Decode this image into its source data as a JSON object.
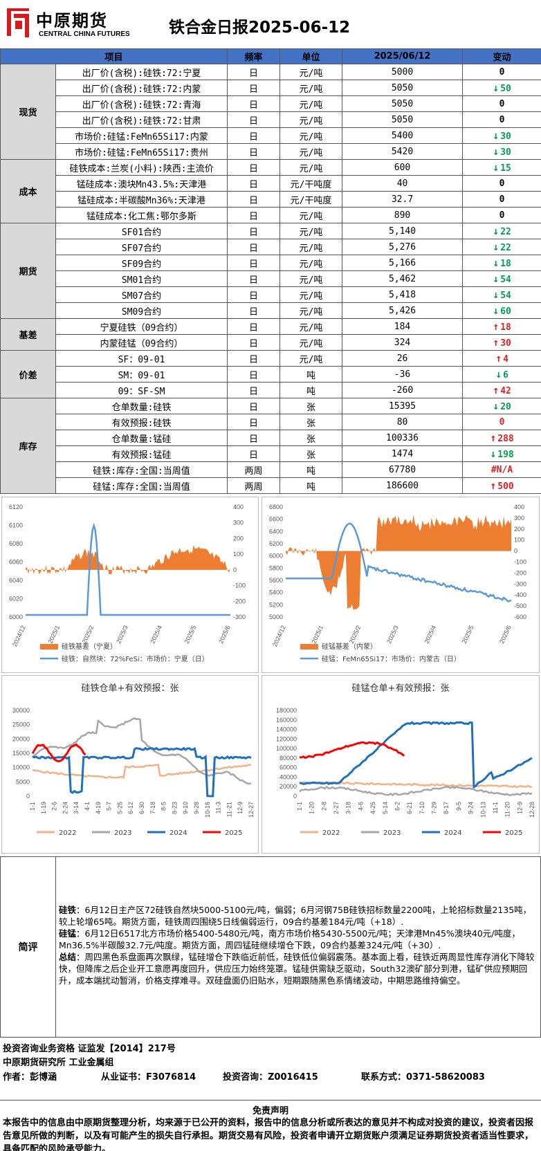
{
  "header": {
    "logo_name": "中原期货",
    "logo_en": "CENTRAL CHINA FUTURES",
    "title": "铁合金日报2025-06-12"
  },
  "table": {
    "columns": [
      "项目",
      "频率",
      "单位",
      "2025/06/12",
      "变动"
    ],
    "groups": [
      {
        "category": "现货",
        "rows": [
          {
            "item": "出厂价(含税):硅铁:72:宁夏",
            "freq": "日",
            "unit": "元/吨",
            "value": "5000",
            "change": "0",
            "dir": ""
          },
          {
            "item": "出厂价(含税):硅铁:72:内蒙",
            "freq": "日",
            "unit": "元/吨",
            "value": "5050",
            "change": "50",
            "dir": "down"
          },
          {
            "item": "出厂价(含税):硅铁:72:青海",
            "freq": "日",
            "unit": "元/吨",
            "value": "5050",
            "change": "0",
            "dir": ""
          },
          {
            "item": "出厂价(含税):硅铁:72:甘肃",
            "freq": "日",
            "unit": "元/吨",
            "value": "5050",
            "change": "0",
            "dir": ""
          },
          {
            "item": "市场价:硅锰:FeMn65Si17:内蒙",
            "freq": "日",
            "unit": "元/吨",
            "value": "5400",
            "change": "30",
            "dir": "down"
          },
          {
            "item": "市场价:硅锰:FeMn65Si17:贵州",
            "freq": "日",
            "unit": "元/吨",
            "value": "5420",
            "change": "30",
            "dir": "down"
          }
        ]
      },
      {
        "category": "成本",
        "rows": [
          {
            "item": "硅铁成本:兰炭(小料):陕西:主流价",
            "freq": "日",
            "unit": "元/吨",
            "value": "600",
            "change": "15",
            "dir": "down"
          },
          {
            "item": "锰硅成本:澳块Mn43.5%:天津港",
            "freq": "日",
            "unit": "元/干吨度",
            "value": "40",
            "change": "0",
            "dir": ""
          },
          {
            "item": "锰硅成本:半碳酸Mn36%:天津港",
            "freq": "日",
            "unit": "元/干吨度",
            "value": "32.7",
            "change": "0",
            "dir": ""
          },
          {
            "item": "锰硅成本:化工焦:鄂尔多斯",
            "freq": "日",
            "unit": "元/吨",
            "value": "890",
            "change": "0",
            "dir": ""
          }
        ]
      },
      {
        "category": "期货",
        "rows": [
          {
            "item": "SF01合约",
            "freq": "日",
            "unit": "元/吨",
            "value": "5,140",
            "change": "22",
            "dir": "down"
          },
          {
            "item": "SF07合约",
            "freq": "日",
            "unit": "元/吨",
            "value": "5,276",
            "change": "22",
            "dir": "down"
          },
          {
            "item": "SF09合约",
            "freq": "日",
            "unit": "元/吨",
            "value": "5,166",
            "change": "18",
            "dir": "down"
          },
          {
            "item": "SM01合约",
            "freq": "日",
            "unit": "元/吨",
            "value": "5,462",
            "change": "54",
            "dir": "down"
          },
          {
            "item": "SM07合约",
            "freq": "日",
            "unit": "元/吨",
            "value": "5,418",
            "change": "54",
            "dir": "down"
          },
          {
            "item": "SM09合约",
            "freq": "日",
            "unit": "元/吨",
            "value": "5,426",
            "change": "60",
            "dir": "down"
          }
        ]
      },
      {
        "category": "基差",
        "rows": [
          {
            "item": "宁夏硅铁（09合约）",
            "freq": "日",
            "unit": "元/吨",
            "value": "184",
            "change": "18",
            "dir": "up"
          },
          {
            "item": "内蒙硅锰（09合约）",
            "freq": "日",
            "unit": "元/吨",
            "value": "324",
            "change": "30",
            "dir": "up"
          }
        ]
      },
      {
        "category": "价差",
        "rows": [
          {
            "item": "SF：09-01",
            "freq": "日",
            "unit": "元/吨",
            "value": "26",
            "change": "4",
            "dir": "up"
          },
          {
            "item": "SM：09-01",
            "freq": "日",
            "unit": "吨",
            "value": "-36",
            "change": "6",
            "dir": "down"
          },
          {
            "item": "09：SF-SM",
            "freq": "日",
            "unit": "吨",
            "value": "-260",
            "change": "42",
            "dir": "up"
          }
        ]
      },
      {
        "category": "库存",
        "rows": [
          {
            "item": "仓单数量:硅铁",
            "freq": "日",
            "unit": "张",
            "value": "15395",
            "change": "20",
            "dir": "down"
          },
          {
            "item": "有效预报:硅铁",
            "freq": "日",
            "unit": "张",
            "value": "80",
            "change": "0",
            "dir": "red"
          },
          {
            "item": "仓单数量:锰硅",
            "freq": "日",
            "unit": "张",
            "value": "100336",
            "change": "288",
            "dir": "up"
          },
          {
            "item": "有效预报:锰硅",
            "freq": "日",
            "unit": "张",
            "value": "1474",
            "change": "198",
            "dir": "down"
          },
          {
            "item": "硅铁:库存:全国:当周值",
            "freq": "两周",
            "unit": "吨",
            "value": "67780",
            "change": "#N/A",
            "dir": "red"
          },
          {
            "item": "硅锰:库存:全国:当周值",
            "freq": "两周",
            "unit": "吨",
            "value": "186600",
            "change": "500",
            "dir": "up"
          }
        ]
      }
    ]
  },
  "chart_data": [
    {
      "type": "line",
      "title": "",
      "left_ticks": [
        "6120",
        "6100",
        "6080",
        "6060",
        "6040",
        "6020",
        "6000"
      ],
      "right_ticks": [
        "400",
        "300",
        "200",
        "100",
        "0",
        "-100",
        "-200",
        "-300"
      ],
      "x_ticks": [
        "2024/12",
        "2025/1",
        "2025/2",
        "2025/3",
        "2025/4",
        "2025/5",
        "2025/6"
      ],
      "series": [
        {
          "name": "硅铁：自然块：72%FeSi：市场价：宁夏（日）",
          "axis": "left",
          "color": "#5b9bd5"
        },
        {
          "name": "硅铁基差（宁夏）",
          "axis": "right",
          "color": "#ed7d31"
        }
      ],
      "legend": [
        "硅铁基差（宁夏）",
        "硅铁：自然块：72%FeSi：市场价：宁夏（日）"
      ]
    },
    {
      "type": "line",
      "title": "",
      "left_ticks": [
        "6800",
        "6600",
        "6400",
        "6200",
        "6000",
        "5800",
        "5600",
        "5400",
        "5200",
        "5000"
      ],
      "right_ticks": [
        "400",
        "300",
        "200",
        "100",
        "0",
        "-100",
        "-200",
        "-300",
        "-400",
        "-500",
        "-600"
      ],
      "x_ticks": [
        "2024/12",
        "2025/1",
        "2025/2",
        "2025/3",
        "2025/4",
        "2025/5",
        "2025/6"
      ],
      "series": [
        {
          "name": "硅锰：FeMn65Si17：市场价：内蒙古（日）",
          "axis": "left",
          "color": "#5b9bd5"
        },
        {
          "name": "硅锰基差（内蒙）",
          "axis": "right",
          "color": "#ed7d31"
        }
      ],
      "legend": [
        "硅锰基差（内蒙）",
        "硅锰：FeMn65Si17：市场价：内蒙古（日）"
      ]
    },
    {
      "type": "line",
      "title": "硅铁仓单+有效预报：张",
      "y_ticks": [
        "30000",
        "25000",
        "20000",
        "15000",
        "10000",
        "5000",
        "0"
      ],
      "x_ticks": [
        "1-1",
        "1-19",
        "2-6",
        "2-24",
        "3-14",
        "4-1",
        "4-19",
        "5-7",
        "5-25",
        "6-12",
        "6-30",
        "7-18",
        "8-5",
        "8-23",
        "9-10",
        "9-28",
        "10-16",
        "11-3",
        "11-21",
        "12-9",
        "12-27"
      ],
      "legend": [
        "2022",
        "2023",
        "2024",
        "2025"
      ],
      "colors": [
        "#f4b183",
        "#a6a6a6",
        "#1f6fbf",
        "#ff0000"
      ]
    },
    {
      "type": "line",
      "title": "硅锰仓单+有效预报：张",
      "y_ticks": [
        "180000",
        "160000",
        "140000",
        "120000",
        "100000",
        "80000",
        "60000",
        "40000",
        "20000",
        "0"
      ],
      "x_ticks": [
        "1-1",
        "1-20",
        "2-8",
        "2-27",
        "3-18",
        "4-6",
        "4-25",
        "5-14",
        "6-2",
        "6-21",
        "7-10",
        "7-29",
        "8-17",
        "9-5",
        "9-24",
        "10-13",
        "11-1",
        "11-20",
        "12-9",
        "12-28"
      ],
      "legend": [
        "2022",
        "2023",
        "2024",
        "2025"
      ],
      "colors": [
        "#f4b183",
        "#a6a6a6",
        "#1f6fbf",
        "#ff0000"
      ]
    }
  ],
  "comment": {
    "label": "简评",
    "p1_head": "硅铁",
    "p1": "：6月12日主产区72硅铁自然块5000-5100元/吨，偏弱；6月河钢75B硅铁招标数量2200吨，上轮招标数量2135吨，较上轮增65吨。期货方面，硅铁周四围绕5日线偏弱运行，09合约基差184元/吨（+18）.",
    "p2_head": "硅锰",
    "p2": "：6月12日6517北方市场价格5400-5480元/吨，南方市场价格5430-5500元/吨；天津港Mn45%澳块40元/吨度，Mn36.5%半碳酸32.7元/吨度。期货方面，周四锰硅继续增仓下跌，09合约基差324元/吨（+30）.",
    "p3_head": "总结",
    "p3": "：周四黑色系盘面再次飘绿，锰硅增仓下跌临近前低，硅铁低位偏弱震荡。基本面上看，硅铁近两周显性库存消化下降较快，但降库之后企业开工意愿再度回升，供应压力始终笼罩。锰硅供需缺乏驱动，South32澳矿部分到港，锰矿供应预期回升，成本端扰动暂消，价格支撑难寻。双硅盘面仍旧贴水，短期跟随黑色系情绪波动，中期思路维持偏空。"
  },
  "info": {
    "line1": "投资咨询业务资格   证监发【2014】217号",
    "line2": "中原期货研究所    工业金属组",
    "author": "作者：彭博涵",
    "cert": "从业证书：F3076814",
    "advisor": "投资咨询：Z0016415",
    "contact": "联系方式：0371-58620083"
  },
  "disclaimer": {
    "head": "免责声明",
    "body": "本报告中的信息由中原期货整理分析，均来源于已公开的资料，报告中的信息分析或所表达的意见并不构成对投资的建议，投资者因报告意见所做的判断，以及有可能产生的损失自行承担。期货交易有风险，投资者申请开立期货账户须满足证券期货投资者适当性要求，具备匹配的风险承受能力。"
  }
}
